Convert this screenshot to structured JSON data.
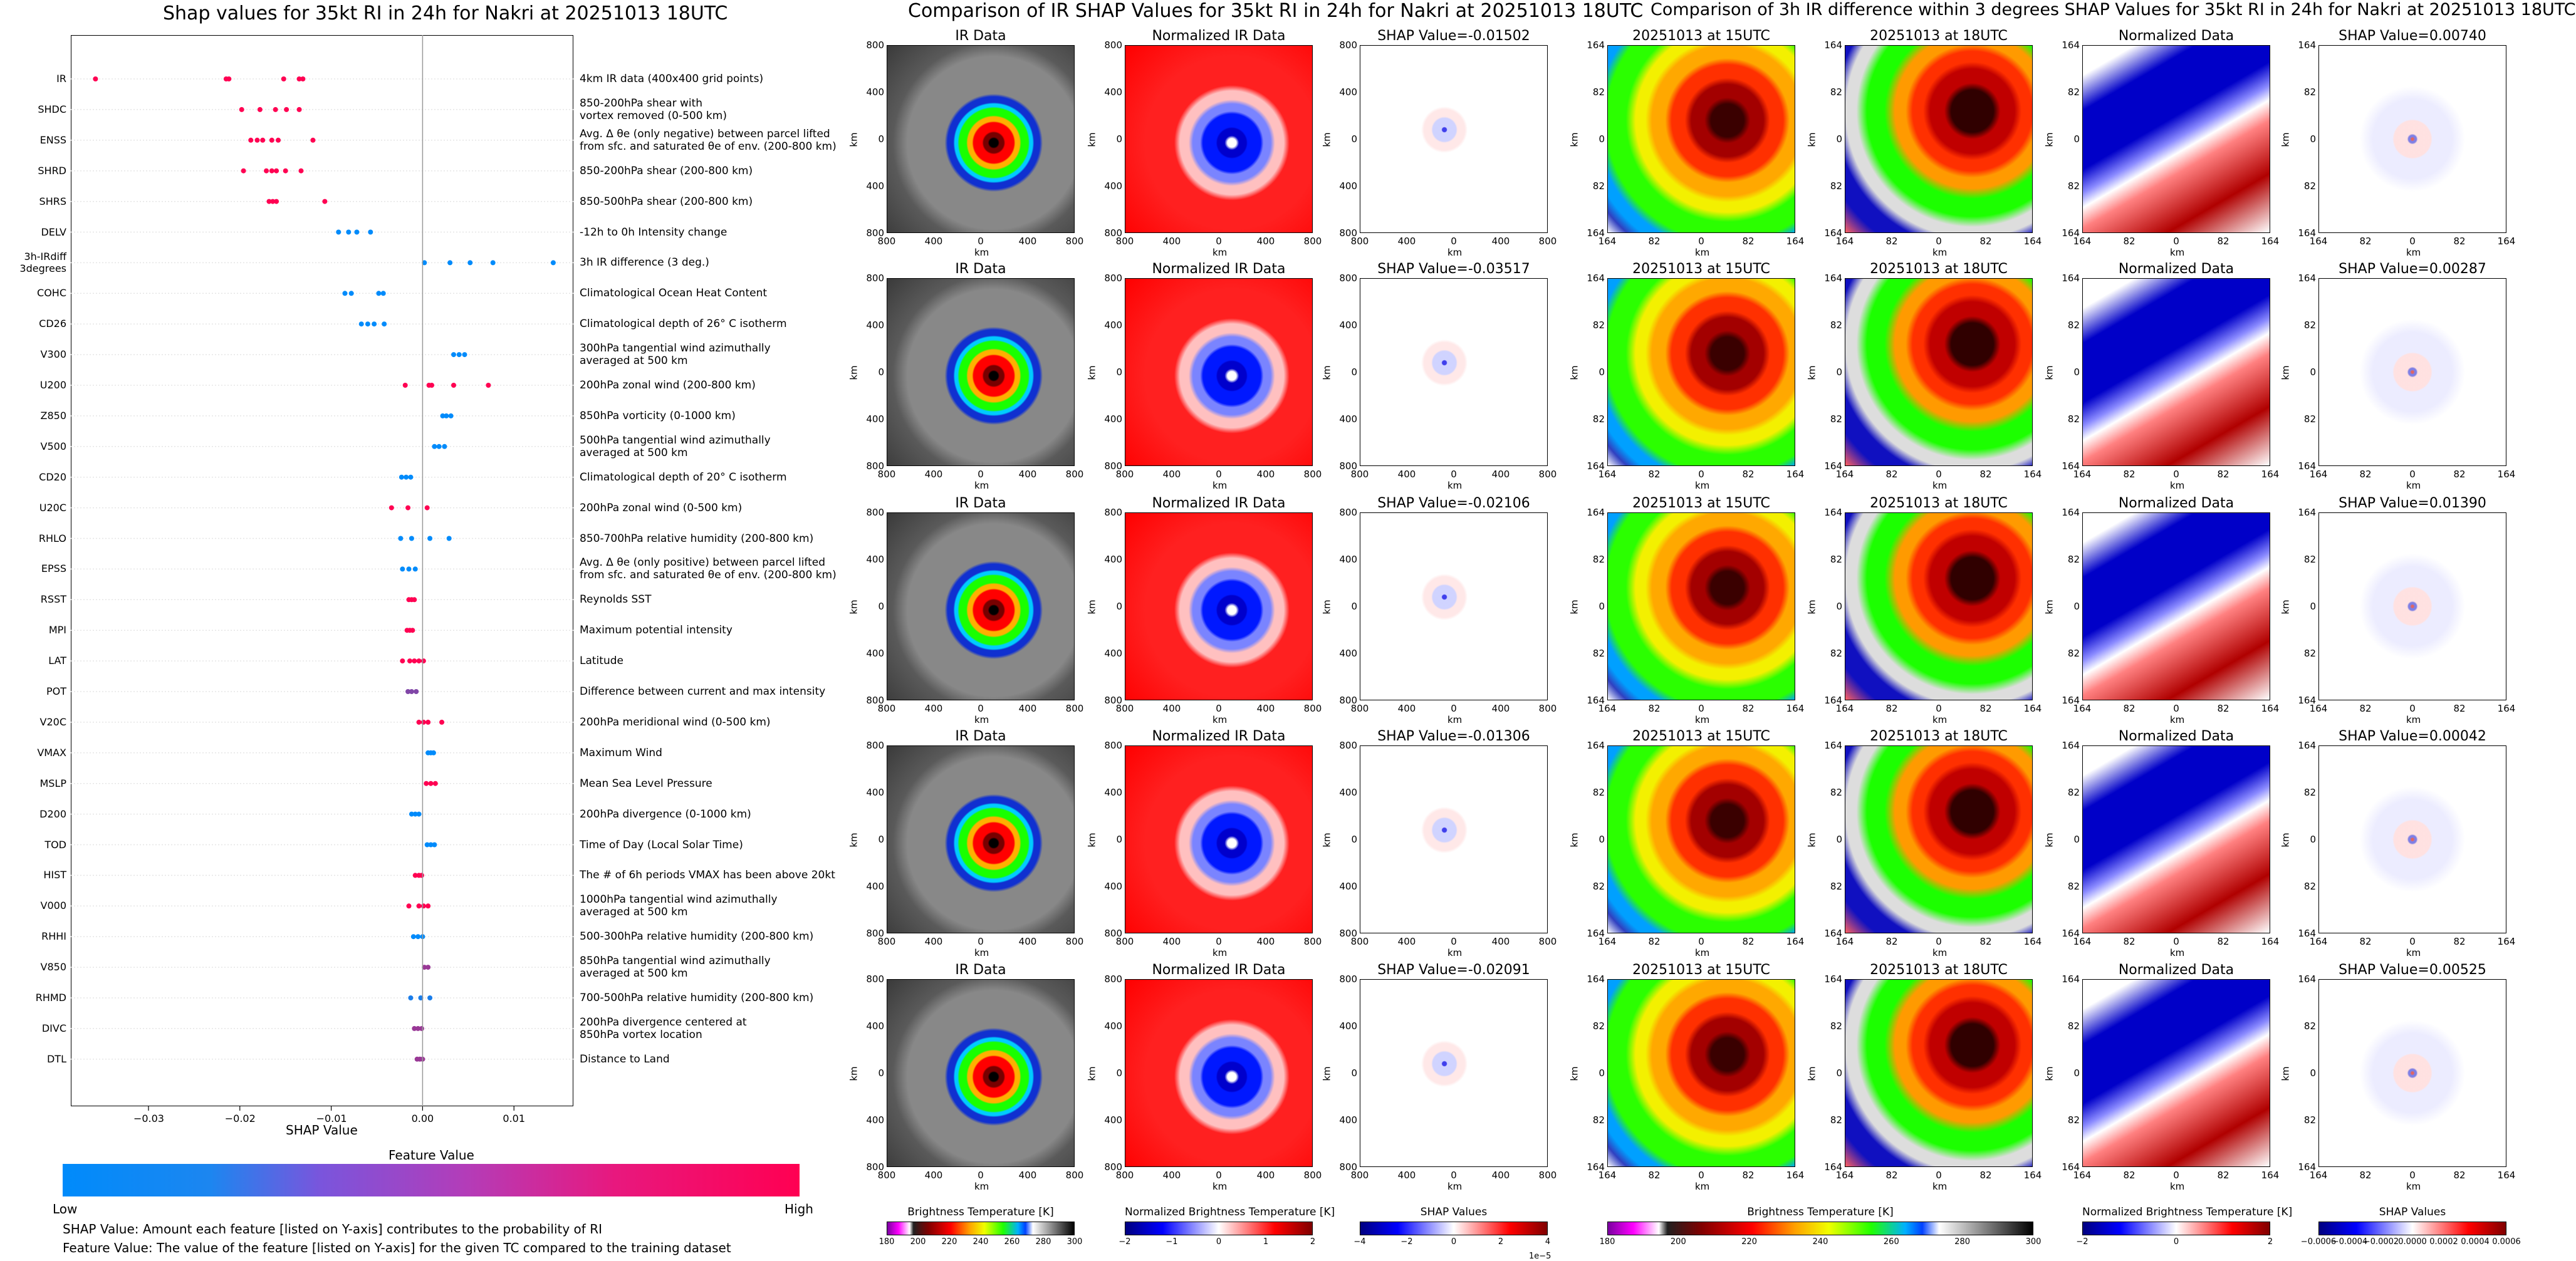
{
  "shap_chart": {
    "title": "Shap values for 35kt RI in 24h for Nakri at 20251013 18UTC",
    "xlabel": "SHAP Value",
    "xticks": [
      -0.03,
      -0.02,
      -0.01,
      0.0,
      0.01
    ],
    "xtick_labels": [
      "−0.03",
      "−0.02",
      "−0.01",
      "0.00",
      "0.01"
    ],
    "xlim": [
      -0.0385,
      0.0165
    ],
    "features": [
      {
        "name": "IR",
        "desc": "4km IR data (400x400 grid points)",
        "points": [
          [
            -0.0358,
            1
          ],
          [
            -0.0215,
            1
          ],
          [
            -0.0212,
            1
          ],
          [
            -0.0152,
            1
          ],
          [
            -0.0135,
            1
          ],
          [
            -0.0131,
            1
          ]
        ]
      },
      {
        "name": "SHDC",
        "desc": "850-200hPa shear with\nvortex removed (0-500 km)",
        "points": [
          [
            -0.0198,
            1
          ],
          [
            -0.0178,
            1
          ],
          [
            -0.0161,
            1
          ],
          [
            -0.0149,
            1
          ],
          [
            -0.0135,
            1
          ]
        ]
      },
      {
        "name": "ENSS",
        "desc": "Avg. Δ θe (only negative) between parcel lifted\nfrom sfc. and saturated θe of env. (200-800 km)",
        "points": [
          [
            -0.0188,
            1
          ],
          [
            -0.0181,
            1
          ],
          [
            -0.0175,
            1
          ],
          [
            -0.0165,
            1
          ],
          [
            -0.0158,
            1
          ],
          [
            -0.012,
            1
          ]
        ]
      },
      {
        "name": "SHRD",
        "desc": "850-200hPa shear (200-800 km)",
        "points": [
          [
            -0.0196,
            1
          ],
          [
            -0.0171,
            1
          ],
          [
            -0.0165,
            1
          ],
          [
            -0.016,
            1
          ],
          [
            -0.015,
            1
          ],
          [
            -0.0133,
            1
          ]
        ]
      },
      {
        "name": "SHRS",
        "desc": "850-500hPa shear (200-800 km)",
        "points": [
          [
            -0.0168,
            1
          ],
          [
            -0.0164,
            1
          ],
          [
            -0.016,
            1
          ],
          [
            -0.0107,
            1
          ]
        ]
      },
      {
        "name": "DELV",
        "desc": "-12h to 0h Intensity change",
        "points": [
          [
            -0.0092,
            0
          ],
          [
            -0.0081,
            0
          ],
          [
            -0.0072,
            0
          ],
          [
            -0.0057,
            0
          ]
        ]
      },
      {
        "name": "3h-IRdiff\n3degrees",
        "desc": "3h IR difference (3 deg.)",
        "points": [
          [
            0.0002,
            0
          ],
          [
            0.003,
            0
          ],
          [
            0.0052,
            0
          ],
          [
            0.0077,
            0
          ],
          [
            0.0143,
            0
          ]
        ]
      },
      {
        "name": "COHC",
        "desc": "Climatological Ocean Heat Content",
        "points": [
          [
            -0.0085,
            0
          ],
          [
            -0.0078,
            0
          ],
          [
            -0.0048,
            0
          ],
          [
            -0.0043,
            0
          ]
        ]
      },
      {
        "name": "CD26",
        "desc": "Climatological depth of 26° C isotherm",
        "points": [
          [
            -0.0067,
            0
          ],
          [
            -0.006,
            0
          ],
          [
            -0.0053,
            0
          ],
          [
            -0.0042,
            0
          ]
        ]
      },
      {
        "name": "V300",
        "desc": "300hPa tangential wind azimuthally\naveraged at 500 km",
        "points": [
          [
            0.0034,
            0
          ],
          [
            0.004,
            0
          ],
          [
            0.0046,
            0
          ]
        ]
      },
      {
        "name": "U200",
        "desc": "200hPa zonal wind (200-800 km)",
        "points": [
          [
            -0.0019,
            1
          ],
          [
            0.0007,
            1
          ],
          [
            0.001,
            1
          ],
          [
            0.0034,
            1
          ],
          [
            0.0072,
            1
          ]
        ]
      },
      {
        "name": "Z850",
        "desc": "850hPa vorticity (0-1000 km)",
        "points": [
          [
            0.0022,
            0
          ],
          [
            0.0026,
            0
          ],
          [
            0.0031,
            0
          ]
        ]
      },
      {
        "name": "V500",
        "desc": "500hPa tangential wind azimuthally\naveraged at 500 km",
        "points": [
          [
            0.0013,
            0
          ],
          [
            0.0018,
            0
          ],
          [
            0.0024,
            0
          ]
        ]
      },
      {
        "name": "CD20",
        "desc": "Climatological depth of 20° C isotherm",
        "points": [
          [
            -0.0023,
            0
          ],
          [
            -0.0018,
            0
          ],
          [
            -0.0013,
            0
          ]
        ]
      },
      {
        "name": "U20C",
        "desc": "200hPa zonal wind (0-500 km)",
        "points": [
          [
            -0.0034,
            1
          ],
          [
            -0.0016,
            1
          ],
          [
            0.0005,
            1
          ]
        ]
      },
      {
        "name": "RHLO",
        "desc": "850-700hPa relative humidity (200-800 km)",
        "points": [
          [
            -0.0024,
            0
          ],
          [
            -0.0012,
            0
          ],
          [
            0.0008,
            0
          ],
          [
            0.0029,
            0
          ]
        ]
      },
      {
        "name": "EPSS",
        "desc": "Avg. Δ θe (only positive) between parcel lifted\nfrom sfc. and saturated θe of env. (200-800 km)",
        "points": [
          [
            -0.0022,
            0
          ],
          [
            -0.0015,
            0
          ],
          [
            -0.0008,
            0
          ]
        ]
      },
      {
        "name": "RSST",
        "desc": "Reynolds SST",
        "points": [
          [
            -0.0015,
            1
          ],
          [
            -0.0012,
            1
          ],
          [
            -0.0009,
            1
          ]
        ]
      },
      {
        "name": "MPI",
        "desc": "Maximum potential intensity",
        "points": [
          [
            -0.0017,
            1
          ],
          [
            -0.0014,
            1
          ],
          [
            -0.0011,
            1
          ]
        ]
      },
      {
        "name": "LAT",
        "desc": "Latitude",
        "points": [
          [
            -0.0022,
            1
          ],
          [
            -0.0014,
            1
          ],
          [
            -0.0009,
            1
          ],
          [
            -0.0004,
            1
          ],
          [
            0.0001,
            1
          ]
        ]
      },
      {
        "name": "POT",
        "desc": "Difference between current and max intensity",
        "points": [
          [
            -0.0016,
            0.5
          ],
          [
            -0.0012,
            0.5
          ],
          [
            -0.0007,
            0.5
          ]
        ]
      },
      {
        "name": "V20C",
        "desc": "200hPa meridional wind (0-500 km)",
        "points": [
          [
            -0.0004,
            1
          ],
          [
            0.0001,
            1
          ],
          [
            0.0006,
            1
          ],
          [
            0.0021,
            1
          ]
        ]
      },
      {
        "name": "VMAX",
        "desc": "Maximum Wind",
        "points": [
          [
            0.0006,
            0
          ],
          [
            0.0009,
            0
          ],
          [
            0.0012,
            0
          ]
        ]
      },
      {
        "name": "MSLP",
        "desc": "Mean Sea Level Pressure",
        "points": [
          [
            0.0004,
            1
          ],
          [
            0.0009,
            1
          ],
          [
            0.0014,
            1
          ]
        ]
      },
      {
        "name": "D200",
        "desc": "200hPa divergence (0-1000 km)",
        "points": [
          [
            -0.0012,
            0
          ],
          [
            -0.0008,
            0
          ],
          [
            -0.0004,
            0
          ]
        ]
      },
      {
        "name": "TOD",
        "desc": "Time of Day (Local Solar Time)",
        "points": [
          [
            0.0005,
            0
          ],
          [
            0.0009,
            0
          ],
          [
            0.0013,
            0
          ]
        ]
      },
      {
        "name": "HIST",
        "desc": "The # of 6h periods VMAX has been above 20kt",
        "points": [
          [
            -0.0008,
            1
          ],
          [
            -0.0004,
            1
          ],
          [
            -0.0001,
            1
          ]
        ]
      },
      {
        "name": "V000",
        "desc": "1000hPa tangential wind azimuthally\naveraged at 500 km",
        "points": [
          [
            -0.0015,
            1
          ],
          [
            -0.0004,
            1
          ],
          [
            0.0001,
            1
          ],
          [
            0.0006,
            1
          ]
        ]
      },
      {
        "name": "RHHI",
        "desc": "500-300hPa relative humidity (200-800 km)",
        "points": [
          [
            -0.001,
            0
          ],
          [
            -0.0005,
            0
          ],
          [
            0.0,
            0
          ]
        ]
      },
      {
        "name": "V850",
        "desc": "850hPa tangential wind azimuthally\naveraged at 500 km",
        "points": [
          [
            0.0002,
            0.6
          ],
          [
            0.0006,
            0.6
          ]
        ]
      },
      {
        "name": "RHMD",
        "desc": "700-500hPa relative humidity (200-800 km)",
        "points": [
          [
            -0.0013,
            0.1
          ],
          [
            -0.0002,
            0.1
          ],
          [
            0.0008,
            0.1
          ]
        ]
      },
      {
        "name": "DIVC",
        "desc": "200hPa divergence centered at\n850hPa vortex location",
        "points": [
          [
            -0.0009,
            0.6
          ],
          [
            -0.0005,
            0.6
          ],
          [
            -0.0001,
            0.6
          ]
        ]
      },
      {
        "name": "DTL",
        "desc": "Distance to Land",
        "points": [
          [
            -0.0006,
            0.6
          ],
          [
            -0.0003,
            0.6
          ],
          [
            0.0,
            0.6
          ]
        ]
      }
    ],
    "colorbar_title": "Feature Value",
    "colorbar_low": "Low",
    "colorbar_high": "High",
    "colors": {
      "low": "#008bfb",
      "high": "#ff0052",
      "grid": "#e5e5e5"
    },
    "note1": "SHAP Value: Amount each feature [listed on Y-axis] contributes to the probability of RI",
    "note2": "Feature Value: The value of the feature [listed on Y-axis] for the given TC compared to the training dataset"
  },
  "ir_section": {
    "title": "Comparison of IR SHAP Values for 35kt RI in 24h for Nakri at 20251013 18UTC",
    "col_titles": [
      "IR Data",
      "Normalized IR Data"
    ],
    "shap_titles": [
      "SHAP Value=-0.01502",
      "SHAP Value=-0.03517",
      "SHAP Value=-0.02106",
      "SHAP Value=-0.01306",
      "SHAP Value=-0.02091"
    ],
    "xticks": [
      "800",
      "400",
      "0",
      "400",
      "800"
    ],
    "yticks": [
      "800",
      "400",
      "0",
      "400",
      "800"
    ],
    "axis_label": "km",
    "colorbars": [
      {
        "label": "Brightness Temperature [K]",
        "ticks": [
          "180",
          "200",
          "220",
          "240",
          "260",
          "280",
          "300"
        ]
      },
      {
        "label": "Normalized Brightness Temperature [K]",
        "ticks": [
          "−2",
          "−1",
          "0",
          "1",
          "2"
        ]
      },
      {
        "label": "SHAP Values",
        "ticks": [
          "−4",
          "−2",
          "0",
          "2",
          "4"
        ],
        "exponent": "1e−5"
      }
    ]
  },
  "diff_section": {
    "title": "Comparison of 3h IR difference within 3 degrees SHAP Values for 35kt RI in 24h for Nakri at 20251013 18UTC",
    "col_titles": [
      "20251013 at 15UTC",
      "20251013 at 18UTC",
      "Normalized Data"
    ],
    "shap_titles": [
      "SHAP Value=0.00740",
      "SHAP Value=0.00287",
      "SHAP Value=0.01390",
      "SHAP Value=0.00042",
      "SHAP Value=0.00525"
    ],
    "xticks": [
      "164",
      "82",
      "0",
      "82",
      "164"
    ],
    "yticks": [
      "164",
      "82",
      "0",
      "82",
      "164"
    ],
    "axis_label": "km",
    "colorbars": [
      {
        "label": "Brightness Temperature [K]",
        "ticks": [
          "180",
          "200",
          "220",
          "240",
          "260",
          "280",
          "300"
        ]
      },
      {
        "label": "Normalized Brightness Temperature [K]",
        "ticks": [
          "−2",
          "0",
          "2"
        ]
      },
      {
        "label": "SHAP Values",
        "ticks": [
          "−0.0006",
          "−0.0004",
          "−0.0002",
          "0.0000",
          "0.0002",
          "0.0004",
          "0.0006"
        ]
      }
    ]
  }
}
